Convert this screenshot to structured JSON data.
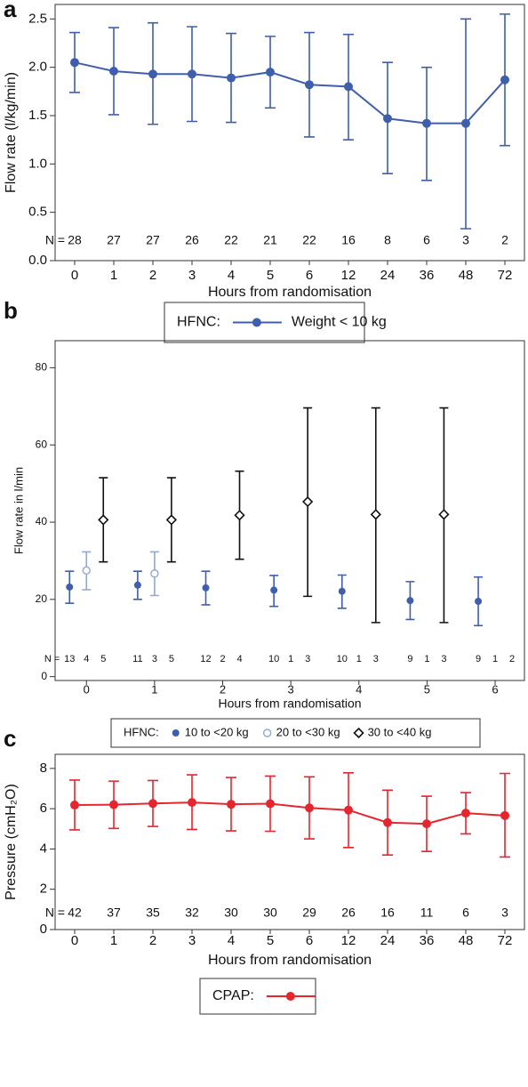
{
  "chart_data": [
    {
      "type": "line",
      "panel_label": "a",
      "ylabel": "Flow rate (l/kg/min)",
      "xlabel": "Hours from randomisation",
      "categories": [
        "0",
        "1",
        "2",
        "3",
        "4",
        "5",
        "6",
        "12",
        "24",
        "36",
        "48",
        "72"
      ],
      "ylim": [
        0,
        2.65
      ],
      "yticks": [
        {
          "value": 0,
          "label": "0.0"
        },
        0.5,
        {
          "value": 1,
          "label": "1.0"
        },
        1.5,
        {
          "value": 2,
          "label": "2.0"
        },
        2.5
      ],
      "n_label": "N =",
      "n_color": "#5b7bbd",
      "legend_title": "HFNC:",
      "series": [
        {
          "name": "Weight < 10 kg",
          "color": "#3f5fad",
          "marker": "circle",
          "values": [
            2.05,
            1.96,
            1.93,
            1.93,
            1.89,
            1.95,
            1.82,
            1.8,
            1.47,
            1.42,
            1.42,
            1.87
          ],
          "upper": [
            2.36,
            2.41,
            2.46,
            2.42,
            2.35,
            2.32,
            2.36,
            2.34,
            2.05,
            2.0,
            2.5,
            2.55
          ],
          "lower": [
            1.74,
            1.51,
            1.41,
            1.44,
            1.43,
            1.58,
            1.28,
            1.25,
            0.9,
            0.83,
            0.33,
            1.19
          ],
          "n": [
            28,
            27,
            27,
            26,
            22,
            21,
            22,
            16,
            8,
            6,
            3,
            2
          ]
        }
      ]
    },
    {
      "type": "scatter",
      "panel_label": "b",
      "ylabel": "Flow rate in l/min",
      "xlabel": "Hours from randomisation",
      "x": [
        0,
        1,
        2,
        3,
        4,
        5,
        6
      ],
      "xlim": [
        -0.46,
        6.43
      ],
      "xticks": [
        0,
        1,
        2,
        3,
        4,
        5,
        6
      ],
      "ylim": [
        -1,
        87
      ],
      "yticks": [
        0,
        20,
        40,
        60,
        80
      ],
      "n_label": "N =",
      "n_color": "#7a7a7a",
      "legend_title": "HFNC:",
      "series": [
        {
          "name": "10 to <20 kg",
          "color": "#3f5fad",
          "marker": "circle",
          "values": [
            23.2,
            23.7,
            23.0,
            22.4,
            22.1,
            19.7,
            19.5
          ],
          "upper": [
            27.3,
            27.3,
            27.3,
            26.2,
            26.3,
            24.6,
            25.8
          ],
          "lower": [
            19.0,
            20.0,
            18.6,
            18.2,
            17.7,
            14.8,
            13.2
          ],
          "n": [
            13,
            11,
            12,
            10,
            10,
            9,
            9
          ]
        },
        {
          "name": "20 to <30 kg",
          "color": "#8fa8d8",
          "marker": "open-circle",
          "values": [
            27.5,
            26.7,
            null,
            null,
            null,
            null,
            null
          ],
          "upper": [
            32.3,
            32.3,
            null,
            null,
            null,
            null,
            null
          ],
          "lower": [
            22.5,
            21.0,
            null,
            null,
            null,
            null,
            null
          ],
          "n": [
            4,
            3,
            2,
            1,
            1,
            1,
            1
          ]
        },
        {
          "name": "30 to <40 kg",
          "color": "#111111",
          "marker": "diamond",
          "values": [
            40.6,
            40.6,
            41.8,
            45.3,
            42.0,
            42.0,
            null
          ],
          "upper": [
            51.5,
            51.5,
            53.2,
            69.6,
            69.6,
            69.6,
            null
          ],
          "lower": [
            29.7,
            29.7,
            30.4,
            20.8,
            14.0,
            14.0,
            null
          ],
          "n": [
            5,
            5,
            4,
            3,
            3,
            3,
            2
          ]
        }
      ]
    },
    {
      "type": "line",
      "panel_label": "c",
      "ylabel": "Pressure (cmH₂O)",
      "xlabel": "Hours from randomisation",
      "categories": [
        "0",
        "1",
        "2",
        "3",
        "4",
        "5",
        "6",
        "12",
        "24",
        "36",
        "48",
        "72"
      ],
      "ylim": [
        0,
        8.7
      ],
      "yticks": [
        0,
        2,
        4,
        6,
        8
      ],
      "n_label": "N =",
      "n_color": "#e8475a",
      "legend_title": "CPAP:",
      "series": [
        {
          "color": "#e5262f",
          "marker": "circle",
          "values": [
            6.18,
            6.2,
            6.26,
            6.31,
            6.22,
            6.25,
            6.04,
            5.93,
            5.31,
            5.25,
            5.78,
            5.66
          ],
          "upper": [
            7.42,
            7.37,
            7.4,
            7.68,
            7.55,
            7.62,
            7.58,
            7.78,
            6.92,
            6.62,
            6.8,
            7.75
          ],
          "lower": [
            4.95,
            5.02,
            5.12,
            4.97,
            4.9,
            4.88,
            4.5,
            4.07,
            3.7,
            3.88,
            4.75,
            3.6
          ],
          "n": [
            42,
            37,
            35,
            32,
            30,
            30,
            29,
            26,
            16,
            11,
            6,
            3
          ]
        }
      ]
    }
  ]
}
